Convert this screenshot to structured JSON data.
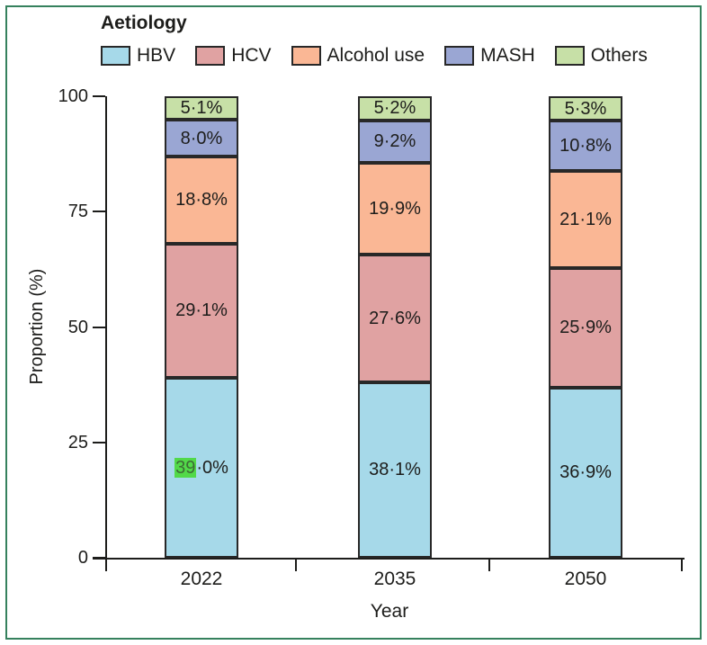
{
  "chart_data": {
    "type": "bar",
    "stacked": true,
    "title": "Aetiology",
    "xlabel": "Year",
    "ylabel": "Proportion (%)",
    "categories": [
      "2022",
      "2035",
      "2050"
    ],
    "series": [
      {
        "name": "HBV",
        "color": "#a6d9e9",
        "values": [
          39.0,
          38.1,
          36.9
        ],
        "labels": [
          "39·0%",
          "38·1%",
          "36·9%"
        ]
      },
      {
        "name": "HCV",
        "color": "#e0a2a2",
        "values": [
          29.1,
          27.6,
          25.9
        ],
        "labels": [
          "29·1%",
          "27·6%",
          "25·9%"
        ]
      },
      {
        "name": "Alcohol use",
        "color": "#fab795",
        "values": [
          18.8,
          19.9,
          21.1
        ],
        "labels": [
          "18·8%",
          "19·9%",
          "21·1%"
        ]
      },
      {
        "name": "MASH",
        "color": "#9aa6d3",
        "values": [
          8.0,
          9.2,
          10.8
        ],
        "labels": [
          "8·0%",
          "9·2%",
          "10·8%"
        ]
      },
      {
        "name": "Others",
        "color": "#c7e0a7",
        "values": [
          5.1,
          5.2,
          5.3
        ],
        "labels": [
          "5·1%",
          "5·2%",
          "5·3%"
        ]
      }
    ],
    "ylim": [
      0,
      100
    ],
    "yticks": [
      "0",
      "25",
      "50",
      "75",
      "100"
    ],
    "legend_position": "top-left",
    "grid": false,
    "highlight": {
      "category_index": 0,
      "series_index": 0,
      "text": "39",
      "rest": "·0%",
      "color": "#52d949"
    }
  },
  "colors": {
    "frame_border": "#35815d",
    "bar_border": "#282828",
    "axis": "#1d1d1b",
    "text": "#1d1d1b"
  }
}
